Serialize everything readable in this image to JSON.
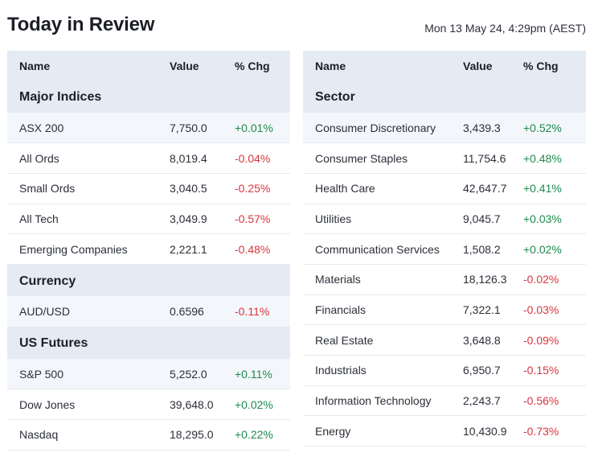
{
  "header": {
    "title": "Today in Review",
    "timestamp": "Mon 13 May 24, 4:29pm (AEST)"
  },
  "colors": {
    "positive": "#1e8a4c",
    "negative": "#d9363e",
    "header_bg": "#e4ebf4",
    "alt_row_bg": "#f3f6fa"
  },
  "left_table": {
    "columns": {
      "name": "Name",
      "value": "Value",
      "change": "% Chg"
    },
    "groups": {
      "major_indices": {
        "title": "Major Indices",
        "rows": [
          {
            "name": "ASX 200",
            "value": "7,750.0",
            "change": "+0.01%"
          },
          {
            "name": "All Ords",
            "value": "8,019.4",
            "change": "-0.04%"
          },
          {
            "name": "Small Ords",
            "value": "3,040.5",
            "change": "-0.25%"
          },
          {
            "name": "All Tech",
            "value": "3,049.9",
            "change": "-0.57%"
          },
          {
            "name": "Emerging Companies",
            "value": "2,221.1",
            "change": "-0.48%"
          }
        ]
      },
      "currency": {
        "title": "Currency",
        "rows": [
          {
            "name": "AUD/USD",
            "value": "0.6596",
            "change": "-0.11%"
          }
        ]
      },
      "us_futures": {
        "title": "US Futures",
        "rows": [
          {
            "name": "S&P 500",
            "value": "5,252.0",
            "change": "+0.11%"
          },
          {
            "name": "Dow Jones",
            "value": "39,648.0",
            "change": "+0.02%"
          },
          {
            "name": "Nasdaq",
            "value": "18,295.0",
            "change": "+0.22%"
          }
        ]
      }
    }
  },
  "right_table": {
    "columns": {
      "name": "Name",
      "value": "Value",
      "change": "% Chg"
    },
    "group_title": "Sector",
    "rows": [
      {
        "name": "Consumer Discretionary",
        "value": "3,439.3",
        "change": "+0.52%"
      },
      {
        "name": "Consumer Staples",
        "value": "11,754.6",
        "change": "+0.48%"
      },
      {
        "name": "Health Care",
        "value": "42,647.7",
        "change": "+0.41%"
      },
      {
        "name": "Utilities",
        "value": "9,045.7",
        "change": "+0.03%"
      },
      {
        "name": "Communication Services",
        "value": "1,508.2",
        "change": "+0.02%"
      },
      {
        "name": "Materials",
        "value": "18,126.3",
        "change": "-0.02%"
      },
      {
        "name": "Financials",
        "value": "7,322.1",
        "change": "-0.03%"
      },
      {
        "name": "Real Estate",
        "value": "3,648.8",
        "change": "-0.09%"
      },
      {
        "name": "Industrials",
        "value": "6,950.7",
        "change": "-0.15%"
      },
      {
        "name": "Information Technology",
        "value": "2,243.7",
        "change": "-0.56%"
      },
      {
        "name": "Energy",
        "value": "10,430.9",
        "change": "-0.73%"
      }
    ]
  }
}
